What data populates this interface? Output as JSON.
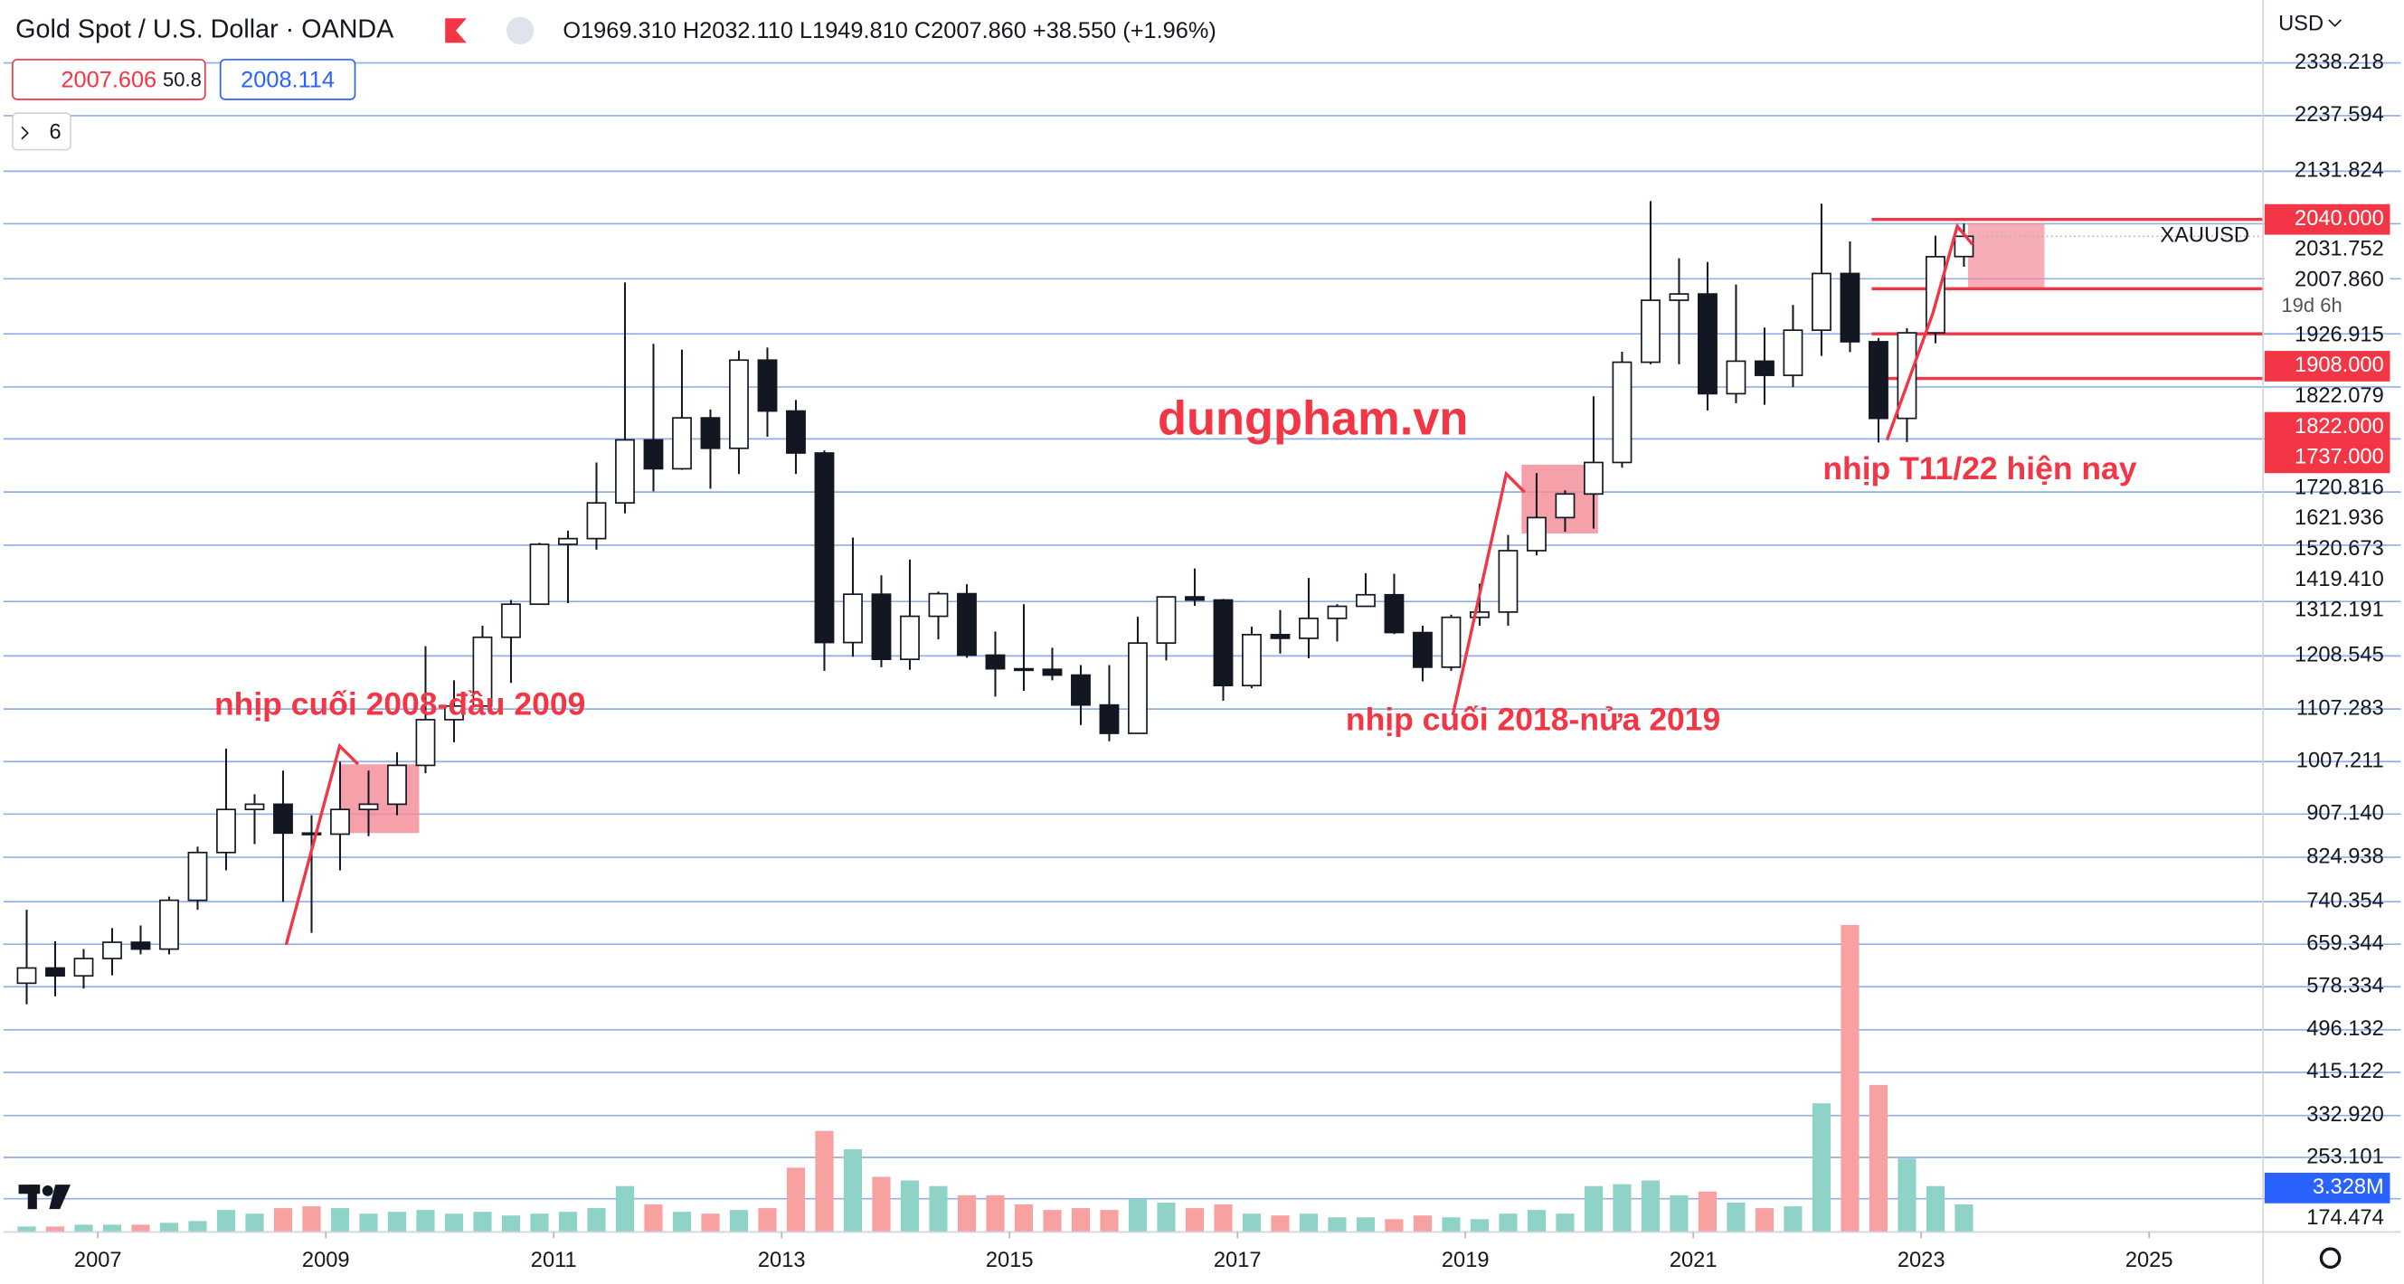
{
  "header": {
    "title": "Gold Spot / U.S. Dollar · OANDA",
    "ohlc": "O1969.310 H2032.110 L1949.810 C2007.860 +38.550 (+1.96%)",
    "bid": "2007.606",
    "spread": "50.8",
    "ask": "2008.114",
    "interval": "6",
    "currency": "USD"
  },
  "chart_data": {
    "type": "candlestick",
    "x": [
      2006.375,
      2006.625,
      2006.875,
      2007.125,
      2007.375,
      2007.625,
      2007.875,
      2008.125,
      2008.375,
      2008.625,
      2008.875,
      2009.125,
      2009.375,
      2009.625,
      2009.875,
      2010.125,
      2010.375,
      2010.625,
      2010.875,
      2011.125,
      2011.375,
      2011.625,
      2011.875,
      2012.125,
      2012.375,
      2012.625,
      2012.875,
      2013.125,
      2013.375,
      2013.625,
      2013.875,
      2014.125,
      2014.375,
      2014.625,
      2014.875,
      2015.125,
      2015.375,
      2015.625,
      2015.875,
      2016.125,
      2016.375,
      2016.625,
      2016.875,
      2017.125,
      2017.375,
      2017.625,
      2017.875,
      2018.125,
      2018.375,
      2018.625,
      2018.875,
      2019.125,
      2019.375,
      2019.625,
      2019.875,
      2020.125,
      2020.375,
      2020.625,
      2020.875,
      2021.125,
      2021.375,
      2021.625,
      2021.875,
      2022.125,
      2022.375,
      2022.625,
      2022.875,
      2023.125,
      2023.375
    ],
    "open": [
      585,
      614,
      599,
      632,
      663,
      650,
      743,
      834,
      916,
      926,
      871,
      869,
      916,
      926,
      1000,
      1087,
      1113,
      1244,
      1307,
      1421,
      1432,
      1500,
      1620,
      1565,
      1662,
      1604,
      1772,
      1675,
      1595,
      1234,
      1326,
      1202,
      1284,
      1327,
      1210,
      1184,
      1183,
      1172,
      1115,
      1061,
      1233,
      1321,
      1315,
      1152,
      1249,
      1242,
      1280,
      1303,
      1325,
      1253,
      1187,
      1282,
      1292,
      1409,
      1472,
      1517,
      1577,
      1768,
      1886,
      1898,
      1708,
      1770,
      1743,
      1829,
      1937,
      1807,
      1661,
      1824,
      1969.31
    ],
    "high": [
      725,
      665,
      650,
      690,
      695,
      750,
      845,
      1032,
      945,
      990,
      905,
      1007,
      990,
      1025,
      1227,
      1162,
      1266,
      1315,
      1424,
      1447,
      1577,
      1920,
      1803,
      1792,
      1678,
      1790,
      1796,
      1696,
      1600,
      1434,
      1362,
      1392,
      1331,
      1345,
      1255,
      1307,
      1224,
      1191,
      1191,
      1283,
      1322,
      1375,
      1317,
      1264,
      1296,
      1357,
      1307,
      1366,
      1365,
      1266,
      1287,
      1346,
      1439,
      1557,
      1524,
      1703,
      1788,
      2075,
      1966,
      1959,
      1916,
      1834,
      1877,
      2070,
      1998,
      1814,
      1833,
      2009,
      2032.11
    ],
    "low": [
      545,
      560,
      575,
      600,
      640,
      640,
      725,
      800,
      850,
      740,
      681,
      800,
      865,
      905,
      985,
      1044,
      1107,
      1157,
      1308,
      1309,
      1411,
      1480,
      1522,
      1563,
      1527,
      1555,
      1626,
      1555,
      1180,
      1207,
      1187,
      1182,
      1240,
      1205,
      1131,
      1142,
      1162,
      1077,
      1046,
      1061,
      1200,
      1304,
      1123,
      1147,
      1213,
      1204,
      1236,
      1302,
      1250,
      1160,
      1180,
      1266,
      1266,
      1400,
      1445,
      1451,
      1567,
      1764,
      1764,
      1676,
      1690,
      1687,
      1721,
      1780,
      1787,
      1615,
      1616,
      1804,
      1949.81
    ],
    "close": [
      614,
      599,
      632,
      663,
      650,
      743,
      834,
      916,
      926,
      871,
      869,
      916,
      926,
      1000,
      1087,
      1113,
      1244,
      1307,
      1421,
      1432,
      1500,
      1620,
      1565,
      1662,
      1604,
      1772,
      1675,
      1595,
      1234,
      1326,
      1202,
      1284,
      1327,
      1210,
      1184,
      1183,
      1172,
      1115,
      1061,
      1233,
      1321,
      1315,
      1152,
      1249,
      1242,
      1280,
      1303,
      1325,
      1253,
      1187,
      1282,
      1292,
      1409,
      1472,
      1517,
      1577,
      1768,
      1886,
      1898,
      1708,
      1770,
      1743,
      1829,
      1937,
      1807,
      1661,
      1824,
      1969,
      2007.86
    ],
    "volume": {
      "axis": "y2",
      "values": [
        0.3,
        0.3,
        0.4,
        0.4,
        0.4,
        0.5,
        0.6,
        1.2,
        1.0,
        1.3,
        1.4,
        1.3,
        1.0,
        1.1,
        1.2,
        1.0,
        1.1,
        0.9,
        1.0,
        1.1,
        1.3,
        2.5,
        1.5,
        1.1,
        1.0,
        1.2,
        1.3,
        3.5,
        5.5,
        4.5,
        3.0,
        2.8,
        2.5,
        2.0,
        2.0,
        1.5,
        1.2,
        1.3,
        1.2,
        1.8,
        1.6,
        1.3,
        1.5,
        1.0,
        0.9,
        1.0,
        0.8,
        0.8,
        0.7,
        0.9,
        0.8,
        0.7,
        1.0,
        1.2,
        1.0,
        2.5,
        2.6,
        2.8,
        2.0,
        2.2,
        1.6,
        1.3,
        1.4,
        7,
        16.7,
        8,
        4,
        2.5,
        1.5
      ],
      "up_color": "#8fd3c8",
      "down_color": "#f7a1a1"
    },
    "up_color": "#ffffff",
    "down_color": "#131722",
    "grid_color": "#8fb0e6",
    "xlim": [
      2006.17,
      2026.0
    ],
    "xticks": [
      2007,
      2009,
      2011,
      2013,
      2015,
      2017,
      2019,
      2021,
      2023,
      2025
    ],
    "ylim": [
      111,
      2458
    ],
    "yticks": [
      2338.218,
      2237.594,
      2131.824,
      2031.752,
      1926.915,
      1822.079,
      1720.816,
      1621.936,
      1520.673,
      {
        "value": 1419.41,
        "label": "1419.410"
      },
      1312.191,
      1208.545,
      1107.283,
      1007.211,
      {
        "value": 907.14,
        "label": "907.140"
      },
      824.938,
      740.354,
      659.344,
      578.334,
      496.132,
      415.122,
      {
        "value": 332.92,
        "label": "332.920"
      },
      253.101,
      174.474
    ],
    "y2lim": [
      0,
      67
    ],
    "y2ticks": [
      {
        "value": 3.328,
        "label": "3.328M"
      }
    ],
    "levels": [
      {
        "value": 2040,
        "label": "2040.000"
      },
      {
        "value": 1908,
        "label": "1908.000"
      },
      {
        "value": 1822,
        "label": "1822.000"
      },
      {
        "value": 1737,
        "label": "1737.000"
      }
    ],
    "level_color": "#f23645",
    "last_price": {
      "value": 2007.86,
      "label": "2007.860",
      "countdown": "19d 6h",
      "symbol": "XAUUSD"
    },
    "annotations": [
      "dungpham.vn",
      "nhịp cuối 2008-đầu 2009",
      "nhịp cuối 2018-nửa 2019",
      "nhịp T11/22 hiện nay"
    ]
  }
}
